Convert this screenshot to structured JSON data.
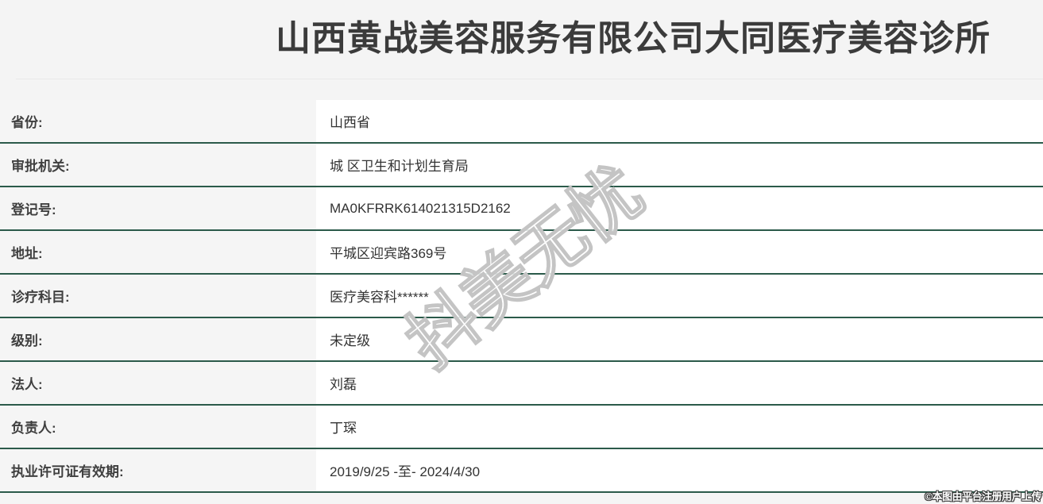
{
  "page": {
    "title": "山西黄战美容服务有限公司大同医疗美容诊所",
    "watermark": "抖美无忧",
    "copyright_note": "©本图由平台注册用户上传"
  },
  "colors": {
    "header_bg": "#f4f4f4",
    "label_column_bg": "#f5f5f5",
    "value_column_bg": "#ffffff",
    "row_divider_green": "#2b5a4a",
    "title_text": "#3b3b3b",
    "body_text": "#333333"
  },
  "table": {
    "rows": [
      {
        "label": "省份:",
        "value": "山西省"
      },
      {
        "label": "审批机关:",
        "value": "城 区卫生和计划生育局"
      },
      {
        "label": "登记号:",
        "value": "MA0KFRRK614021315D2162"
      },
      {
        "label": "地址:",
        "value": "平城区迎宾路369号"
      },
      {
        "label": "诊疗科目:",
        "value": "医疗美容科******"
      },
      {
        "label": "级别:",
        "value": "未定级"
      },
      {
        "label": "法人:",
        "value": "刘磊"
      },
      {
        "label": "负责人:",
        "value": "丁琛"
      },
      {
        "label": "执业许可证有效期:",
        "value": "2019/9/25 -至- 2024/4/30"
      }
    ]
  }
}
